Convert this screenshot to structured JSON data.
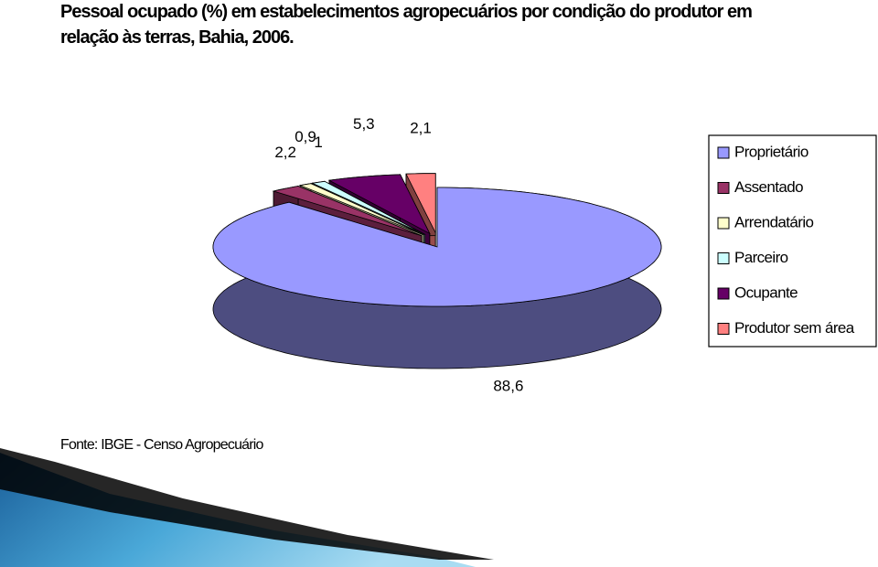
{
  "chart_data": {
    "type": "pie3d",
    "title": "Pessoal ocupado (%) em estabelecimentos agropecuários por condição do produtor em relação às terras, Bahia, 2006.",
    "source": "Fonte: IBGE - Censo Agropecuário",
    "categories": [
      "Proprietário",
      "Assentado",
      "Arrendatário",
      "Parceiro",
      "Ocupante",
      "Produtor sem área"
    ],
    "values": [
      88.6,
      2.2,
      0.9,
      1,
      5.3,
      2.1
    ],
    "value_labels": [
      "88,6",
      "2,2",
      "0,9",
      "1",
      "5,3",
      "2,1"
    ],
    "colors": [
      "#9999ff",
      "#993366",
      "#ffffcc",
      "#ccffff",
      "#660066",
      "#ff8080"
    ],
    "legend": "right"
  }
}
